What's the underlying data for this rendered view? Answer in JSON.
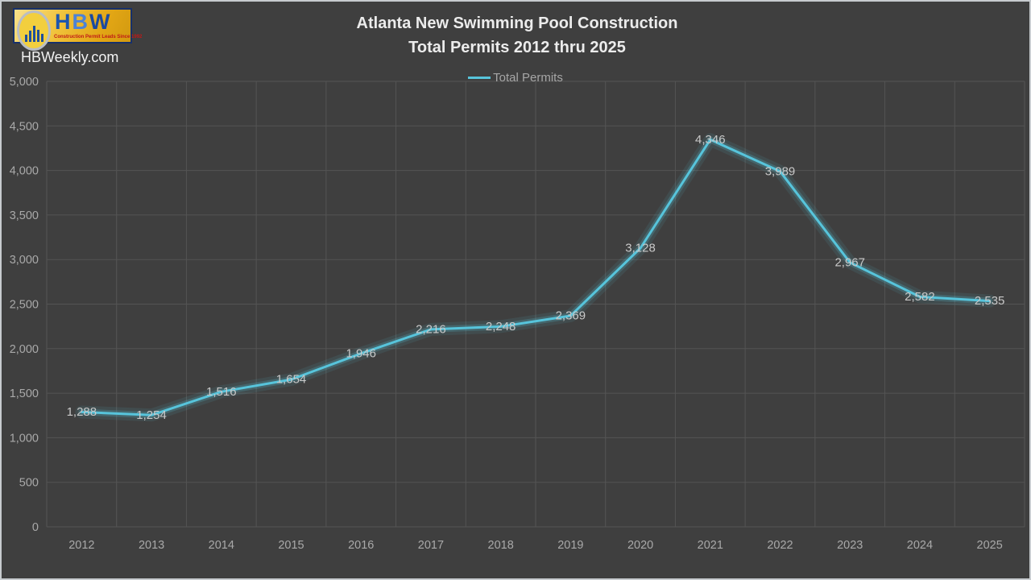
{
  "site": "HBWeekly.com",
  "logo": {
    "letters": [
      "H",
      "B",
      "W"
    ],
    "tagline": "Construction Permit Leads Since 1992"
  },
  "chart_data": {
    "type": "line",
    "title_line1": "Atlanta New Swimming Pool Construction",
    "title_line2": "Total Permits 2012 thru 2025",
    "legend": "Total Permits",
    "legend_position": "top",
    "grid": true,
    "categories": [
      "2012",
      "2013",
      "2014",
      "2015",
      "2016",
      "2017",
      "2018",
      "2019",
      "2020",
      "2021",
      "2022",
      "2023",
      "2024",
      "2025"
    ],
    "values": [
      1288,
      1254,
      1516,
      1654,
      1946,
      2216,
      2248,
      2369,
      3128,
      4346,
      3989,
      2967,
      2582,
      2535
    ],
    "value_labels": [
      "1,288",
      "1,254",
      "1,516",
      "1,654",
      "1,946",
      "2,216",
      "2,248",
      "2,369",
      "3,128",
      "4,346",
      "3,989",
      "2,967",
      "2,582",
      "2,535"
    ],
    "xlabel": "",
    "ylabel": "",
    "ylim": [
      0,
      5000
    ],
    "ytick_step": 500,
    "ytick_labels": [
      "0",
      "500",
      "1,000",
      "1,500",
      "2,000",
      "2,500",
      "3,000",
      "3,500",
      "4,000",
      "4,500",
      "5,000"
    ],
    "line_color": "#57C4DB",
    "background_color": "#3F3F3F",
    "grid_color": "#545454",
    "label_color": "#C9C9C9"
  }
}
